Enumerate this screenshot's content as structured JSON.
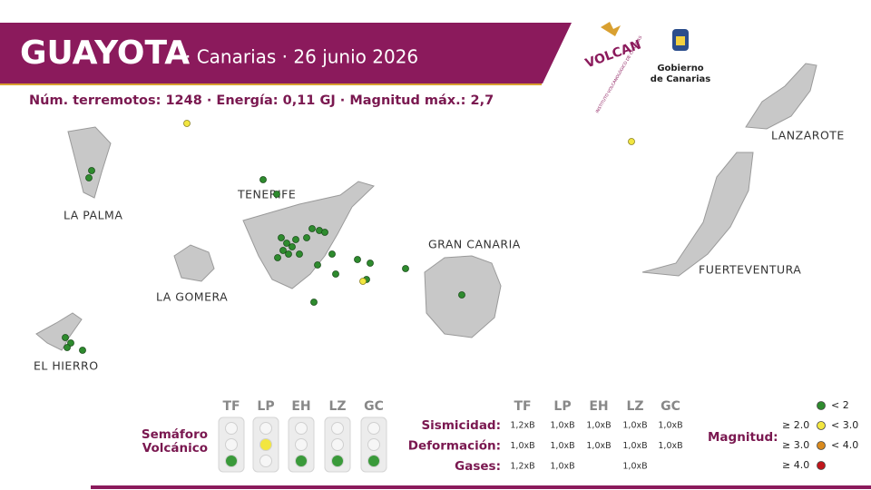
{
  "header": {
    "title": "GUAYOTA",
    "subtitle": "· Canarias · 26 junio 2026"
  },
  "stats": "Núm. terremotos: 1248 · Energía: 0,11 GJ · Magnitud  máx.: 2,7",
  "logos": {
    "ivc_name": "VOLCAN",
    "ivc_sub": "INSTITUTO VOLCANOLÓGICO DE CANARIAS",
    "gov": [
      "Gobierno",
      "de Canarias"
    ]
  },
  "islands": [
    "LA PALMA",
    "TENERIFE",
    "LA GOMERA",
    "EL HIERRO",
    "GRAN CANARIA",
    "LANZAROTE",
    "FUERTEVENTURA"
  ],
  "semaphore": {
    "label": [
      "Semáforo",
      "Volcánico"
    ],
    "columns": [
      "TF",
      "LP",
      "EH",
      "LZ",
      "GC"
    ],
    "active": [
      "green",
      "yellow",
      "green",
      "green",
      "green"
    ]
  },
  "table": {
    "columns": [
      "TF",
      "LP",
      "EH",
      "LZ",
      "GC"
    ],
    "rows": [
      {
        "label": "Sismicidad:",
        "values": [
          "1,2xB",
          "1,0xB",
          "1,0xB",
          "1,0xB",
          "1,0xB"
        ]
      },
      {
        "label": "Deformación:",
        "values": [
          "1,0xB",
          "1,0xB",
          "1,0xB",
          "1,0xB",
          "1,0xB"
        ]
      },
      {
        "label": "Gases:",
        "values": [
          "1,2xB",
          "1,0xB",
          null,
          "1,0xB",
          null
        ]
      }
    ]
  },
  "legend": {
    "title": "Magnitud:",
    "items": [
      {
        "to": "< 2",
        "color": "#2e8b2e"
      },
      {
        "from": "≥ 2.0",
        "to": "< 3.0",
        "color": "#f2e640"
      },
      {
        "from": "≥ 3.0",
        "to": "< 4.0",
        "color": "#d98a1e"
      },
      {
        "from": "≥ 4.0",
        "color": "#c0161c"
      }
    ]
  }
}
